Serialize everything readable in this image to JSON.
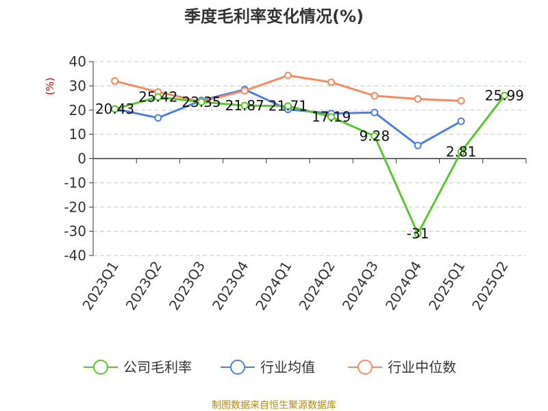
{
  "colors": {
    "series": [
      "#5cc42c",
      "#4f7fde",
      "#f58a5e"
    ],
    "source_text": "#b8860b",
    "ylabel": "#cc0000"
  },
  "footer": {
    "source": "制图数据来自恒生聚源数据库"
  },
  "chart_data": {
    "type": "line",
    "title": "季度毛利率变化情况(%)",
    "ylabel": "(%)",
    "xlabel": "",
    "ylim": [
      -40,
      40
    ],
    "yticks": [
      40,
      30,
      20,
      10,
      0,
      -10,
      -20,
      -30,
      -40
    ],
    "grid": true,
    "legend_position": "bottom",
    "categories": [
      "2023Q1",
      "2023Q2",
      "2023Q3",
      "2023Q4",
      "2024Q1",
      "2024Q2",
      "2024Q3",
      "2024Q4",
      "2025Q1",
      "2025Q2"
    ],
    "series": [
      {
        "name": "公司毛利率",
        "values": [
          20.43,
          25.42,
          23.35,
          21.87,
          21.71,
          17.19,
          9.28,
          -31,
          2.81,
          25.99
        ],
        "labels": [
          "20.43",
          "25.42",
          "23.35",
          "21.87",
          "21.71",
          "17.19",
          "9.28",
          "-31",
          "2.81",
          "25.99"
        ]
      },
      {
        "name": "行业均值",
        "values": [
          20.5,
          16.8,
          24,
          28.5,
          20.3,
          18.6,
          19,
          5.4,
          15.4,
          null
        ]
      },
      {
        "name": "行业中位数",
        "values": [
          32,
          27.5,
          23.5,
          28,
          34.3,
          31.5,
          25.9,
          24.6,
          23.8,
          null
        ]
      }
    ]
  }
}
